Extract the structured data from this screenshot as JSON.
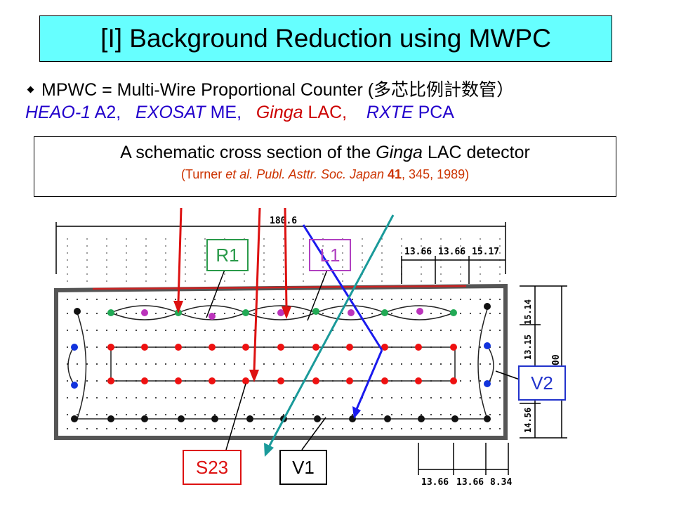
{
  "title": "[I] Background Reduction using MWPC",
  "bullet": {
    "text_prefix": "MPWC = Multi-Wire Proportional Counter (",
    "text_japanese": "多芯比例計数管",
    "text_suffix": "）"
  },
  "missions": [
    {
      "name": "HEAO-1",
      "instrument": "A2,",
      "color": "#2200cc"
    },
    {
      "name": "EXOSAT",
      "instrument": "ME,",
      "color": "#2200cc"
    },
    {
      "name": "Ginga",
      "instrument": "LAC,",
      "color": "#cc0000"
    },
    {
      "name": "RXTE",
      "instrument": "PCA",
      "color": "#2200cc"
    }
  ],
  "caption": {
    "main_prefix": "A schematic cross section of the ",
    "main_italic": "Ginga",
    "main_suffix": " LAC detector",
    "ref_prefix": "(Turner ",
    "ref_italic": "et al. Publ. Asttr. Soc. Japan",
    "ref_bold": " 41",
    "ref_suffix": ", 345, 1989)"
  },
  "dimensions": {
    "top_total": "180.6",
    "top_right": [
      "13.66",
      "13.66",
      "15.17"
    ],
    "bottom_right": [
      "13.66",
      "13.66",
      "8.34"
    ],
    "side_right": [
      "15.14",
      "13.15",
      "14.56"
    ],
    "side_total": "00"
  },
  "labels": {
    "r1": {
      "text": "R1",
      "color": "#2a9a4a"
    },
    "l1": {
      "text": "L1",
      "color": "#b040c0"
    },
    "v2": {
      "text": "V2",
      "color": "#2233cc"
    },
    "s23": {
      "text": "S23",
      "color": "#dd1111"
    },
    "v1": {
      "text": "V1",
      "color": "#000000"
    }
  },
  "colors": {
    "red_track": "#dd1111",
    "blue_track": "#1a1aee",
    "teal_track": "#1a9a9a",
    "green_wire": "#22aa55",
    "purple_wire": "#bb33bb",
    "red_wire": "#ee1111",
    "blue_wire": "#1133dd",
    "black_wire": "#111111"
  }
}
